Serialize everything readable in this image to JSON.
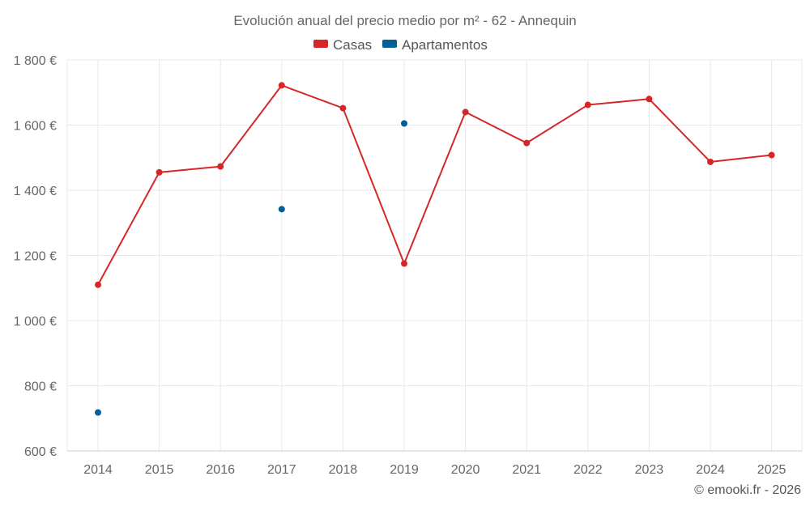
{
  "chart_data": {
    "type": "line",
    "title": "Evolución anual del precio medio por m² - 62 - Annequin",
    "categories": [
      "2014",
      "2015",
      "2016",
      "2017",
      "2018",
      "2019",
      "2020",
      "2021",
      "2022",
      "2023",
      "2024",
      "2025"
    ],
    "series": [
      {
        "name": "Casas",
        "color": "#d62728",
        "mode": "lines+markers",
        "values": [
          1110,
          1455,
          1473,
          1722,
          1652,
          1175,
          1640,
          1545,
          1662,
          1680,
          1487,
          1508
        ]
      },
      {
        "name": "Apartamentos",
        "color": "#005f99",
        "mode": "markers",
        "values": [
          718,
          null,
          null,
          1342,
          null,
          1605,
          null,
          null,
          null,
          null,
          null,
          null
        ]
      }
    ],
    "ylim": [
      600,
      1800
    ],
    "yticks": [
      600,
      800,
      1000,
      1200,
      1400,
      1600,
      1800
    ],
    "ytick_labels": [
      "600 €",
      "800 €",
      "1 000 €",
      "1 200 €",
      "1 400 €",
      "1 600 €",
      "1 800 €"
    ],
    "xlabel": "",
    "ylabel": "",
    "grid": true,
    "legend_position": "top-center"
  },
  "credit": "© emooki.fr - 2026"
}
